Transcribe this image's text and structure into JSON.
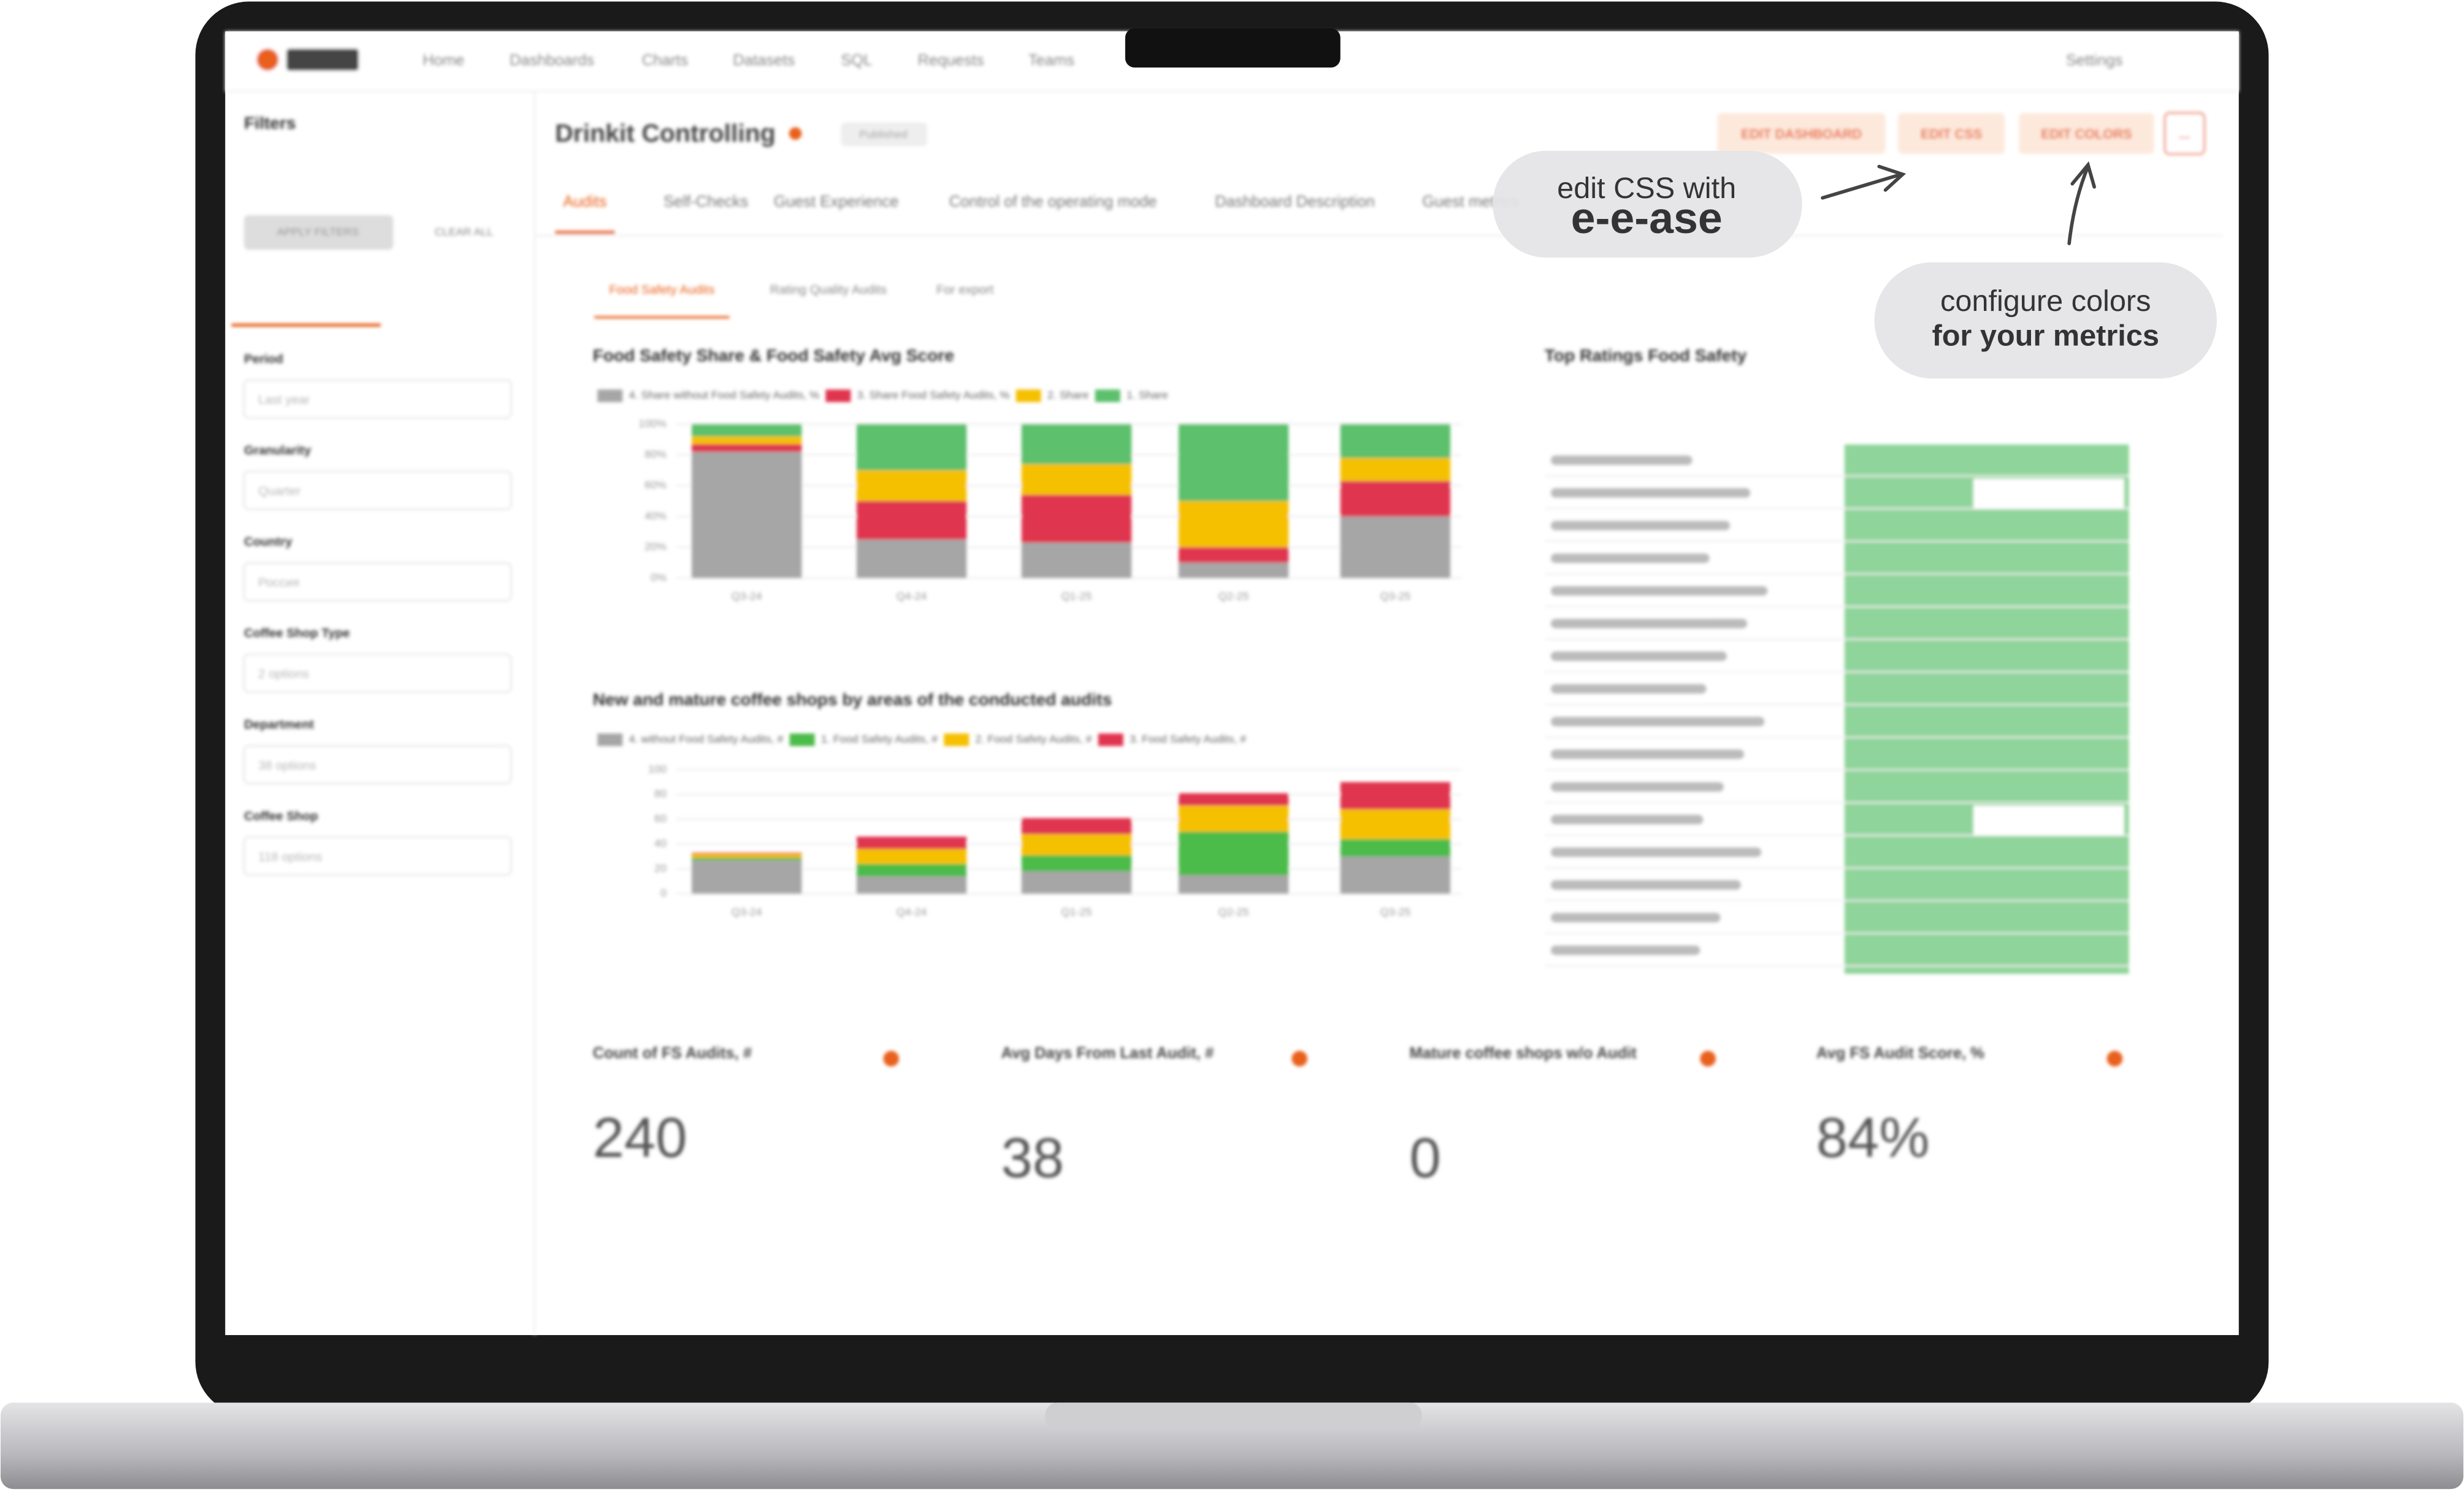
{
  "nav": {
    "items": [
      "Home",
      "Dashboards",
      "Charts",
      "Datasets",
      "SQL",
      "Requests",
      "Teams"
    ],
    "settings": "Settings"
  },
  "sidebar": {
    "title": "Filters",
    "apply": "APPLY FILTERS",
    "clear": "CLEAR ALL",
    "fields": [
      {
        "label": "Period",
        "value": "Last year"
      },
      {
        "label": "Granularity",
        "value": "Quarter"
      },
      {
        "label": "Country",
        "value": "Россия"
      },
      {
        "label": "Coffee Shop Type",
        "value": "2 options"
      },
      {
        "label": "Department",
        "value": "38 options"
      },
      {
        "label": "Coffee Shop",
        "value": "118 options"
      }
    ]
  },
  "dashboard": {
    "title": "Drinkit Controlling",
    "status": "Published",
    "buttons": [
      "EDIT DASHBOARD",
      "EDIT CSS",
      "EDIT COLORS",
      "..."
    ],
    "tabs": [
      "Audits",
      "Self-Checks",
      "Guest Experience",
      "Control of the operating mode",
      "Dashboard Description",
      "Guest metrics"
    ],
    "subtabs": [
      "Food Safety Audits",
      "Rating Quality Audits",
      "For export"
    ],
    "table_title": "Top Ratings Food Safety"
  },
  "callouts": [
    {
      "line1": "edit CSS with",
      "line2": "e-e-ase"
    },
    {
      "line1": "configure colors",
      "line2": "for your metrics"
    }
  ],
  "chart_data": [
    {
      "type": "bar",
      "stacked": true,
      "title": "Food Safety Share & Food Safety Avg Score",
      "categories": [
        "Q3-24",
        "Q4-24",
        "Q1-25",
        "Q2-25",
        "Q3-25"
      ],
      "ylim": [
        0,
        100
      ],
      "yticks": [
        {
          "value": 0,
          "label": "0%"
        },
        {
          "value": 20,
          "label": "20%"
        },
        {
          "value": 40,
          "label": "40%"
        },
        {
          "value": 60,
          "label": "60%"
        },
        {
          "value": 80,
          "label": "80%"
        },
        {
          "value": 100,
          "label": "100%"
        }
      ],
      "series": [
        {
          "name": "4. Share without Food Safety Audits, %",
          "color": "#a6a6a6",
          "values": [
            82,
            25,
            23,
            10,
            40
          ]
        },
        {
          "name": "3. Share Food Safety Audits, %",
          "color": "#e0344f",
          "values": [
            5,
            25,
            31,
            10,
            23
          ]
        },
        {
          "name": "2. Share",
          "color": "#f5c000",
          "values": [
            5,
            20,
            20,
            30,
            15
          ]
        },
        {
          "name": "1. Share",
          "color": "#5cc06c",
          "values": [
            8,
            30,
            26,
            50,
            22
          ]
        }
      ]
    },
    {
      "type": "bar",
      "stacked": true,
      "title": "New and mature coffee shops by areas of the conducted audits",
      "categories": [
        "Q3-24",
        "Q4-24",
        "Q1-25",
        "Q2-25",
        "Q3-25"
      ],
      "ylim": [
        0,
        100
      ],
      "yticks": [
        0,
        20,
        40,
        60,
        80,
        100
      ],
      "series": [
        {
          "name": "4. without Food Safety Audits, #",
          "color": "#a6a6a6",
          "values": [
            27,
            14,
            18,
            15,
            30
          ]
        },
        {
          "name": "1. Food Safety Audits, #",
          "color": "#4cbb4a",
          "values": [
            2,
            10,
            13,
            35,
            14
          ]
        },
        {
          "name": "2. Food Safety Audits, #",
          "color": "#f5c000",
          "values": [
            3,
            12,
            17,
            21,
            24
          ]
        },
        {
          "name": "3. Food Safety Audits, #",
          "color": "#e0344f",
          "values": [
            1,
            10,
            13,
            10,
            22
          ]
        }
      ]
    }
  ],
  "kpis": [
    {
      "title": "Count of FS Audits, #",
      "value": "240"
    },
    {
      "title": "Avg Days From Last Audit, #",
      "value": "38"
    },
    {
      "title": "Mature coffee shops w/o Audit",
      "value": "0"
    },
    {
      "title": "Avg FS Audit Score, %",
      "value": "84%"
    }
  ]
}
